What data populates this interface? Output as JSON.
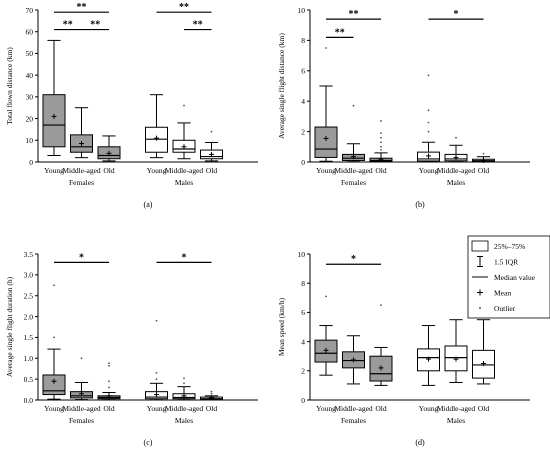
{
  "chart_data": [
    {
      "panel_label": "(a)",
      "type": "boxplot",
      "ylabel": "Total flown distance (km)",
      "ylim": [
        0,
        70
      ],
      "yticks": [
        "0",
        "10",
        "20",
        "30",
        "40",
        "50",
        "60",
        "70"
      ],
      "categories": [
        "Young",
        "Middle-aged",
        "Old",
        "Young",
        "Middle-aged",
        "Old"
      ],
      "groups": [
        "Females",
        "Males"
      ],
      "boxes": [
        {
          "category": "Young",
          "group": "Females",
          "whisker_low": 3,
          "q1": 7,
          "median": 17,
          "q3": 31,
          "whisker_high": 56,
          "mean": 21,
          "outliers": [],
          "filled": true
        },
        {
          "category": "Middle-aged",
          "group": "Females",
          "whisker_low": 2,
          "q1": 4.5,
          "median": 7,
          "q3": 12.5,
          "whisker_high": 25,
          "mean": 8.5,
          "outliers": [],
          "filled": true
        },
        {
          "category": "Old",
          "group": "Females",
          "whisker_low": 0.5,
          "q1": 1.5,
          "median": 3,
          "q3": 7,
          "whisker_high": 12,
          "mean": 4,
          "outliers": [],
          "filled": true
        },
        {
          "category": "Young",
          "group": "Males",
          "whisker_low": 2,
          "q1": 4.5,
          "median": 10.5,
          "q3": 16,
          "whisker_high": 31,
          "mean": 11,
          "outliers": [],
          "filled": false
        },
        {
          "category": "Middle-aged",
          "group": "Males",
          "whisker_low": 1.5,
          "q1": 4.5,
          "median": 6,
          "q3": 10,
          "whisker_high": 18,
          "mean": 7,
          "outliers": [
            26
          ],
          "filled": false
        },
        {
          "category": "Old",
          "group": "Males",
          "whisker_low": 0.5,
          "q1": 1.5,
          "median": 2.5,
          "q3": 5.5,
          "whisker_high": 9,
          "mean": 3.5,
          "outliers": [
            14
          ],
          "filled": false
        }
      ],
      "significance": [
        {
          "from": 0,
          "to": 2,
          "level": 69,
          "label": "**"
        },
        {
          "from": 0,
          "to": 1,
          "level": 61,
          "label": "**"
        },
        {
          "from": 1,
          "to": 2,
          "level": 61,
          "label": "**"
        },
        {
          "from": 3,
          "to": 5,
          "level": 69,
          "label": "**"
        },
        {
          "from": 4,
          "to": 5,
          "level": 61,
          "label": "**"
        }
      ]
    },
    {
      "panel_label": "(b)",
      "type": "boxplot",
      "ylabel": "Average single flight distance (km)",
      "ylim": [
        0,
        10
      ],
      "yticks": [
        "0",
        "2",
        "4",
        "6",
        "8",
        "10"
      ],
      "categories": [
        "Young",
        "Middle-aged",
        "Old",
        "Young",
        "Middle-aged",
        "Old"
      ],
      "groups": [
        "Females",
        "Males"
      ],
      "boxes": [
        {
          "category": "Young",
          "group": "Females",
          "whisker_low": 0.05,
          "q1": 0.3,
          "median": 0.85,
          "q3": 2.3,
          "whisker_high": 5.0,
          "mean": 1.55,
          "outliers": [
            7.5
          ],
          "filled": true
        },
        {
          "category": "Middle-aged",
          "group": "Females",
          "whisker_low": 0.02,
          "q1": 0.1,
          "median": 0.25,
          "q3": 0.5,
          "whisker_high": 1.2,
          "mean": 0.35,
          "outliers": [
            3.7
          ],
          "filled": true
        },
        {
          "category": "Old",
          "group": "Females",
          "whisker_low": 0.01,
          "q1": 0.05,
          "median": 0.1,
          "q3": 0.25,
          "whisker_high": 0.6,
          "mean": 0.18,
          "outliers": [
            0.8,
            1.0,
            1.3,
            1.6,
            1.9,
            2.7
          ],
          "filled": true
        },
        {
          "category": "Young",
          "group": "Males",
          "whisker_low": 0.02,
          "q1": 0.07,
          "median": 0.2,
          "q3": 0.65,
          "whisker_high": 1.3,
          "mean": 0.4,
          "outliers": [
            2.0,
            2.6,
            3.4,
            5.7
          ],
          "filled": false
        },
        {
          "category": "Middle-aged",
          "group": "Males",
          "whisker_low": 0.02,
          "q1": 0.08,
          "median": 0.2,
          "q3": 0.5,
          "whisker_high": 1.1,
          "mean": 0.3,
          "outliers": [
            1.6
          ],
          "filled": false
        },
        {
          "category": "Old",
          "group": "Males",
          "whisker_low": 0.01,
          "q1": 0.04,
          "median": 0.08,
          "q3": 0.18,
          "whisker_high": 0.35,
          "mean": 0.1,
          "outliers": [
            0.55
          ],
          "filled": false
        }
      ],
      "significance": [
        {
          "from": 0,
          "to": 2,
          "level": 9.4,
          "label": "**"
        },
        {
          "from": 0,
          "to": 1,
          "level": 8.2,
          "label": "**"
        },
        {
          "from": 3,
          "to": 5,
          "level": 9.4,
          "label": "*"
        }
      ]
    },
    {
      "panel_label": "(c)",
      "type": "boxplot",
      "ylabel": "Average single flight duration (h)",
      "ylim": [
        0,
        3.5
      ],
      "yticks": [
        "0.0",
        "0.5",
        "1.0",
        "1.5",
        "2.0",
        "2.5",
        "3.0",
        "3.5"
      ],
      "categories": [
        "Young",
        "Middle-aged",
        "Old",
        "Young",
        "Middle-aged",
        "Old"
      ],
      "groups": [
        "Females",
        "Males"
      ],
      "boxes": [
        {
          "category": "Young",
          "group": "Females",
          "whisker_low": 0.02,
          "q1": 0.13,
          "median": 0.22,
          "q3": 0.6,
          "whisker_high": 1.22,
          "mean": 0.45,
          "outliers": [
            1.5,
            2.75
          ],
          "filled": true
        },
        {
          "category": "Middle-aged",
          "group": "Females",
          "whisker_low": 0.01,
          "q1": 0.05,
          "median": 0.1,
          "q3": 0.2,
          "whisker_high": 0.42,
          "mean": 0.15,
          "outliers": [
            1.0
          ],
          "filled": true
        },
        {
          "category": "Old",
          "group": "Females",
          "whisker_low": 0.005,
          "q1": 0.03,
          "median": 0.06,
          "q3": 0.1,
          "whisker_high": 0.18,
          "mean": 0.1,
          "outliers": [
            0.3,
            0.45,
            0.82,
            0.88
          ],
          "filled": true
        },
        {
          "category": "Young",
          "group": "Males",
          "whisker_low": 0.005,
          "q1": 0.03,
          "median": 0.07,
          "q3": 0.2,
          "whisker_high": 0.4,
          "mean": 0.13,
          "outliers": [
            0.5,
            0.65,
            1.9
          ],
          "filled": false
        },
        {
          "category": "Middle-aged",
          "group": "Males",
          "whisker_low": 0.005,
          "q1": 0.03,
          "median": 0.06,
          "q3": 0.15,
          "whisker_high": 0.32,
          "mean": 0.1,
          "outliers": [
            0.4,
            0.52
          ],
          "filled": false
        },
        {
          "category": "Old",
          "group": "Males",
          "whisker_low": 0.003,
          "q1": 0.01,
          "median": 0.03,
          "q3": 0.07,
          "whisker_high": 0.1,
          "mean": 0.05,
          "outliers": [
            0.15,
            0.2
          ],
          "filled": false
        }
      ],
      "significance": [
        {
          "from": 0,
          "to": 2,
          "level": 3.3,
          "label": "*"
        },
        {
          "from": 3,
          "to": 5,
          "level": 3.3,
          "label": "*"
        }
      ]
    },
    {
      "panel_label": "(d)",
      "type": "boxplot",
      "ylabel": "Mean speed (km/h)",
      "ylim": [
        0,
        10
      ],
      "yticks": [
        "0",
        "2",
        "4",
        "6",
        "8",
        "10"
      ],
      "categories": [
        "Young",
        "Middle-aged",
        "Old",
        "Young",
        "Middle-aged",
        "Old"
      ],
      "groups": [
        "Females",
        "Males"
      ],
      "boxes": [
        {
          "category": "Young",
          "group": "Females",
          "whisker_low": 1.7,
          "q1": 2.6,
          "median": 3.2,
          "q3": 4.1,
          "whisker_high": 5.1,
          "mean": 3.4,
          "outliers": [
            7.1
          ],
          "filled": true
        },
        {
          "category": "Middle-aged",
          "group": "Females",
          "whisker_low": 1.1,
          "q1": 2.2,
          "median": 2.7,
          "q3": 3.3,
          "whisker_high": 4.4,
          "mean": 2.75,
          "outliers": [],
          "filled": true
        },
        {
          "category": "Old",
          "group": "Females",
          "whisker_low": 1.0,
          "q1": 1.3,
          "median": 1.8,
          "q3": 3.0,
          "whisker_high": 3.6,
          "mean": 2.2,
          "outliers": [
            6.5
          ],
          "filled": true
        },
        {
          "category": "Young",
          "group": "Males",
          "whisker_low": 1.0,
          "q1": 2.0,
          "median": 2.9,
          "q3": 3.5,
          "whisker_high": 5.1,
          "mean": 2.8,
          "outliers": [],
          "filled": false
        },
        {
          "category": "Middle-aged",
          "group": "Males",
          "whisker_low": 1.2,
          "q1": 2.0,
          "median": 2.9,
          "q3": 3.7,
          "whisker_high": 5.5,
          "mean": 2.8,
          "outliers": [],
          "filled": false
        },
        {
          "category": "Old",
          "group": "Males",
          "whisker_low": 1.1,
          "q1": 1.5,
          "median": 2.4,
          "q3": 3.4,
          "whisker_high": 5.5,
          "mean": 2.5,
          "outliers": [],
          "filled": false
        }
      ],
      "significance": [
        {
          "from": 0,
          "to": 2,
          "level": 9.3,
          "label": "*"
        }
      ],
      "legend": {
        "placement": "top-right",
        "entries": [
          {
            "symbol": "box",
            "label": "25%–75%"
          },
          {
            "symbol": "whisker",
            "label": "1.5 IQR"
          },
          {
            "symbol": "line",
            "label": "Median value"
          },
          {
            "symbol": "plus",
            "label": "Mean"
          },
          {
            "symbol": "dot",
            "label": "Outlier"
          }
        ]
      }
    }
  ],
  "style": {
    "box_fill": "#9b9b9b",
    "stroke": "#000000",
    "outlier": "#555555",
    "background": "#ffffff"
  }
}
